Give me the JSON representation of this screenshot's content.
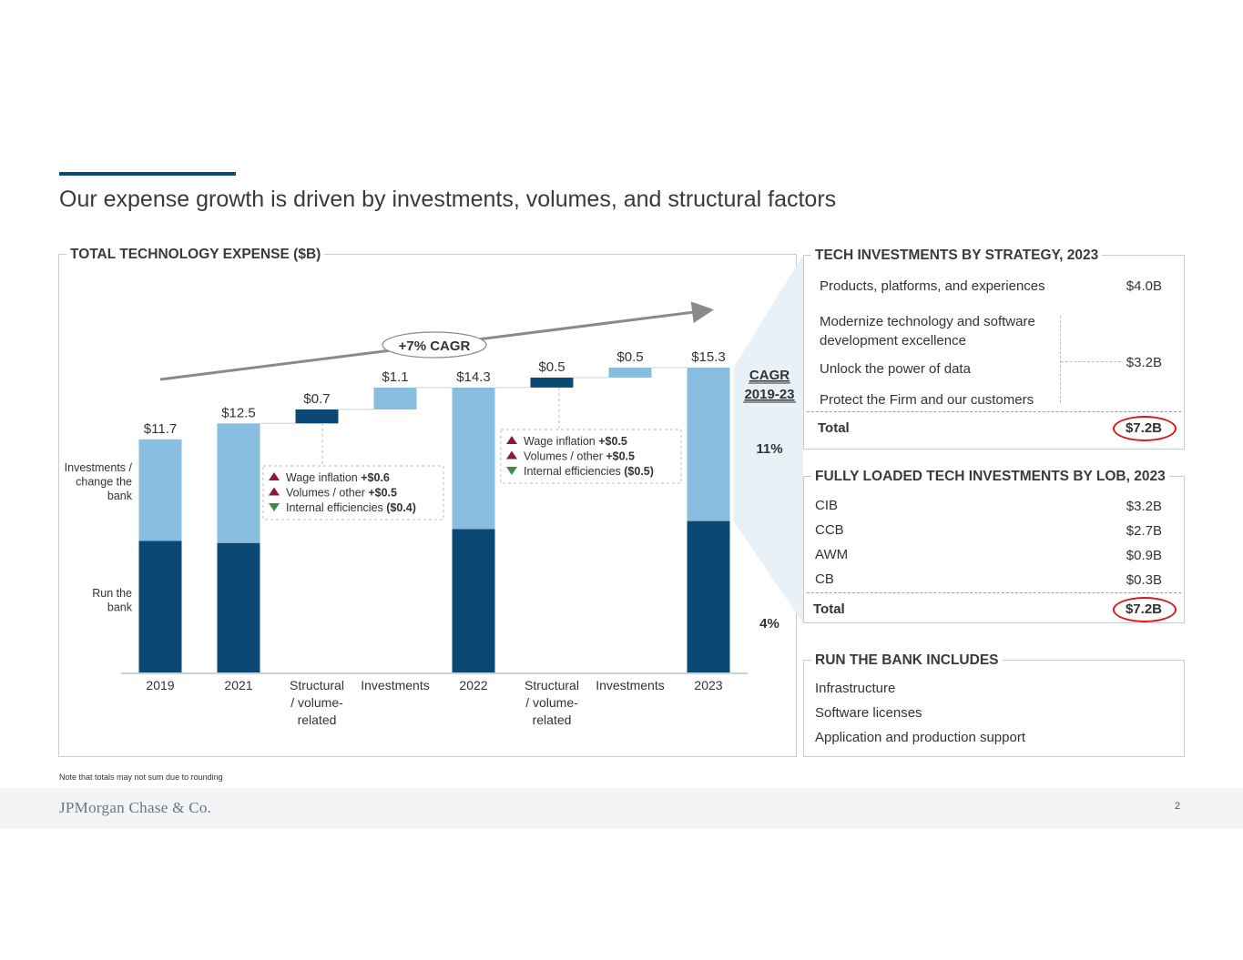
{
  "title": "Our expense growth is driven by investments, volumes, and structural factors",
  "colors": {
    "dark": "#0b4873",
    "light": "#88bde0",
    "accent": "#0b4873",
    "up": "#8b1a3a",
    "down": "#3a8a4a",
    "circle": "#d7191c"
  },
  "chart_panel": {
    "title": "TOTAL TECHNOLOGY EXPENSE ($B)"
  },
  "chart_data": {
    "type": "bar",
    "subtype": "waterfall-stacked",
    "title": "TOTAL TECHNOLOGY EXPENSE ($B)",
    "categories": [
      "2019",
      "2021",
      "Structural / volume-related",
      "Investments",
      "2022",
      "Structural / volume-related",
      "Investments",
      "2023"
    ],
    "category_lines": [
      [
        "2019"
      ],
      [
        "2021"
      ],
      [
        "Structural",
        "/ volume-",
        "related"
      ],
      [
        "Investments"
      ],
      [
        "2022"
      ],
      [
        "Structural",
        "/ volume-",
        "related"
      ],
      [
        "Investments"
      ],
      [
        "2023"
      ]
    ],
    "series": [
      {
        "name": "Run the bank",
        "color": "dark",
        "values": [
          6.6,
          6.5,
          null,
          null,
          7.2,
          null,
          null,
          7.6
        ]
      },
      {
        "name": "Investments / change the bank",
        "color": "light",
        "values": [
          5.1,
          6.0,
          null,
          null,
          7.1,
          null,
          null,
          7.7
        ]
      }
    ],
    "steps": [
      {
        "index": 2,
        "base": 12.5,
        "value": 0.7,
        "color": "dark"
      },
      {
        "index": 3,
        "base": 13.2,
        "value": 1.1,
        "color": "light"
      },
      {
        "index": 5,
        "base": 14.3,
        "value": 0.5,
        "color": "dark"
      },
      {
        "index": 6,
        "base": 14.8,
        "value": 0.5,
        "color": "light"
      }
    ],
    "value_labels": [
      "$11.7",
      "$12.5",
      "$0.7",
      "$1.1",
      "$14.3",
      "$0.5",
      "$0.5",
      "$15.3"
    ],
    "series_labels": {
      "light": [
        "Investments /",
        "change the",
        "bank"
      ],
      "dark": [
        "Run the",
        "bank"
      ]
    },
    "cagr_arrow_label": "+7% CAGR",
    "cagr_header": [
      "CAGR",
      "2019-23"
    ],
    "cagr_light": "11%",
    "cagr_dark": "4%",
    "callouts": [
      {
        "items": [
          {
            "dir": "up",
            "label": "Wage inflation",
            "value": "+$0.6"
          },
          {
            "dir": "up",
            "label": "Volumes / other",
            "value": "+$0.5"
          },
          {
            "dir": "down",
            "label": "Internal efficiencies",
            "value": "($0.4)"
          }
        ]
      },
      {
        "items": [
          {
            "dir": "up",
            "label": "Wage inflation",
            "value": "+$0.5"
          },
          {
            "dir": "up",
            "label": "Volumes / other",
            "value": "+$0.5"
          },
          {
            "dir": "down",
            "label": "Internal efficiencies",
            "value": "($0.5)"
          }
        ]
      }
    ],
    "ylim": [
      0,
      15.3
    ]
  },
  "strategy": {
    "title": "TECH INVESTMENTS BY STRATEGY, 2023",
    "row1_label": "Products, platforms, and experiences",
    "row1_value": "$4.0B",
    "row2_label_a": "Modernize technology and software",
    "row2_label_b": "development excellence",
    "row3_label": "Unlock the power of data",
    "row4_label": "Protect the Firm and our customers",
    "group_value": "$3.2B",
    "total_label": "Total",
    "total_value": "$7.2B"
  },
  "lob": {
    "title": "FULLY LOADED TECH INVESTMENTS BY LOB, 2023",
    "rows": [
      {
        "label": "CIB",
        "value": "$3.2B"
      },
      {
        "label": "CCB",
        "value": "$2.7B"
      },
      {
        "label": "AWM",
        "value": "$0.9B"
      },
      {
        "label": "CB",
        "value": "$0.3B"
      }
    ],
    "total_label": "Total",
    "total_value": "$7.2B"
  },
  "run": {
    "title": "RUN THE BANK INCLUDES",
    "items": [
      "Infrastructure",
      "Software licenses",
      "Application and production support"
    ]
  },
  "note": "Note that totals may not sum due to rounding",
  "footer": {
    "logo": "JPMorgan Chase & Co.",
    "page": "2"
  }
}
